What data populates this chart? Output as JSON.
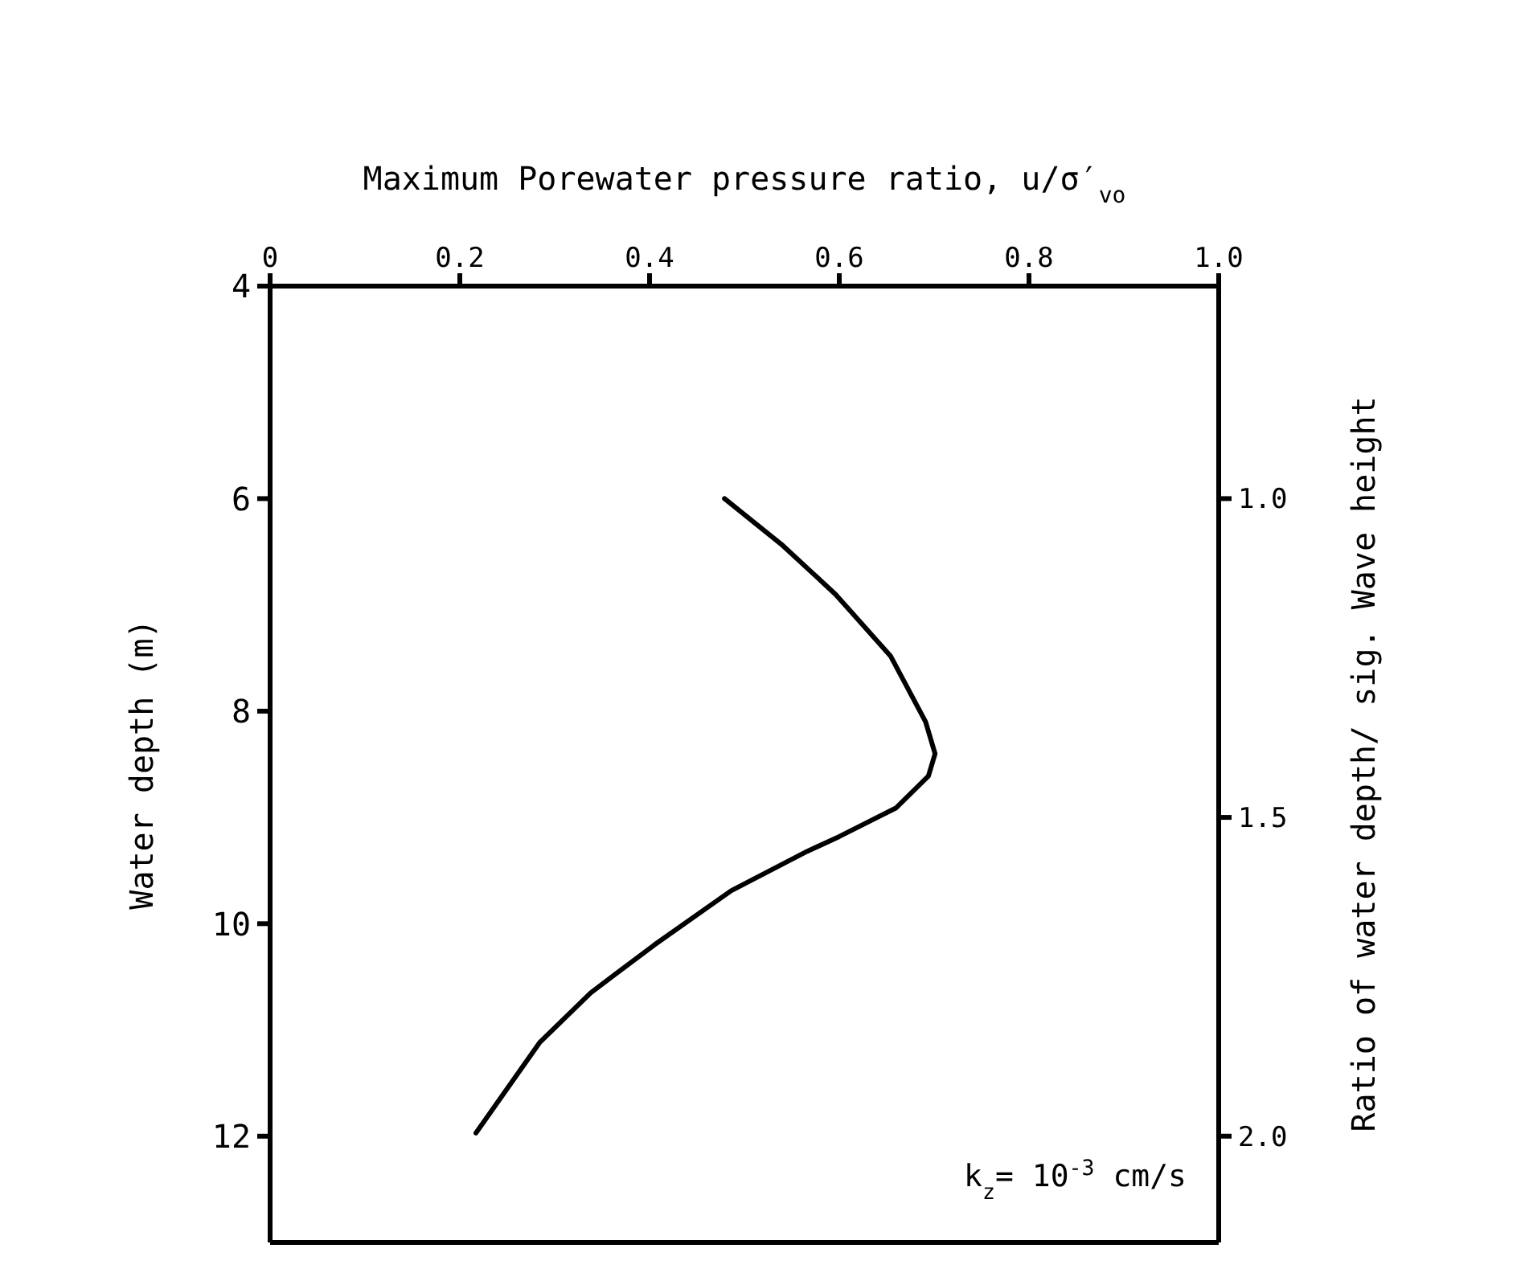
{
  "chart_data": {
    "type": "line",
    "xlabel": "Maximum Porewater pressure ratio, u/σ′$_{vo}$",
    "ylabel": "Water depth (m)",
    "y2label": "Ratio of water depth/ sig. Wave height",
    "xlim": [
      0,
      1
    ],
    "xticks": [
      0,
      0.2,
      0.4,
      0.6,
      0.8,
      {
        "value": 1,
        "label": "1.0"
      }
    ],
    "ylim": [
      13,
      4
    ],
    "yticks": [
      4,
      6,
      8,
      10,
      12
    ],
    "y2lim": [
      2.1667,
      0.6667
    ],
    "y2ticks": [
      {
        "value": 1,
        "label": "1.0"
      },
      1.5,
      {
        "value": 2,
        "label": "2.0"
      }
    ],
    "series": [
      {
        "color": "#000000",
        "x": [
          0.479,
          0.539,
          0.596,
          0.654,
          0.691,
          0.701,
          0.694,
          0.66,
          0.6,
          0.566,
          0.486,
          0.405,
          0.338,
          0.284,
          0.217
        ],
        "values": [
          6.0,
          6.43,
          6.9,
          7.48,
          8.1,
          8.4,
          8.61,
          8.91,
          9.18,
          9.32,
          9.69,
          10.2,
          10.65,
          11.12,
          11.97
        ]
      }
    ],
    "annotations": [
      "k$_{z}$= 10$^{-3}$ cm/s"
    ],
    "marker": "none",
    "line_style": "solid"
  }
}
